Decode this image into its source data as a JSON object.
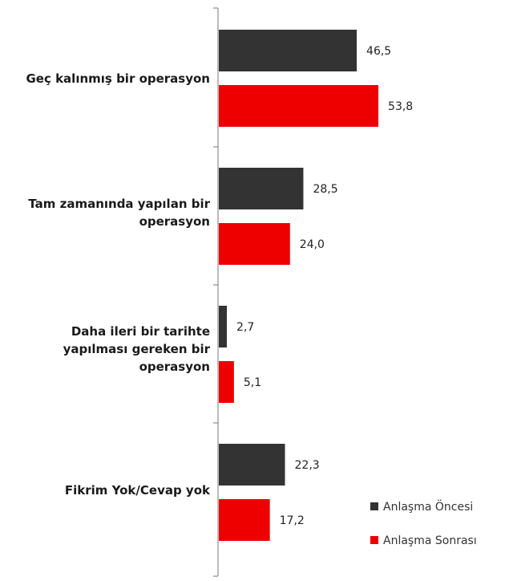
{
  "chart_data": {
    "type": "bar",
    "orientation": "horizontal",
    "categories": [
      "Geç kalınmış bir operasyon",
      "Tam zamanında yapılan bir operasyon",
      "Daha ileri bir tarihte yapılması gereken bir operasyon",
      "Fikrim Yok/Cevap yok"
    ],
    "category_lines": [
      [
        "Geç kalınmış bir operasyon"
      ],
      [
        "Tam zamanında yapılan bir",
        "operasyon"
      ],
      [
        "Daha ileri bir tarihte",
        "yapılması gereken bir",
        "operasyon"
      ],
      [
        "Fikrim Yok/Cevap yok"
      ]
    ],
    "series": [
      {
        "name": "Anlaşma Öncesi",
        "color": "#333333",
        "values": [
          46.5,
          28.5,
          2.7,
          22.3
        ],
        "labels": [
          "46,5",
          "28,5",
          "2,7",
          "22,3"
        ]
      },
      {
        "name": "Anlaşma Sonrası",
        "color": "#ee0000",
        "values": [
          53.8,
          24.0,
          5.1,
          17.2
        ],
        "labels": [
          "53,8",
          "24,0",
          "5,1",
          "17,2"
        ]
      }
    ],
    "title": "",
    "xlabel": "",
    "ylabel": "",
    "xlim": [
      0,
      60
    ],
    "grid": false,
    "legend": "bottom-right"
  }
}
